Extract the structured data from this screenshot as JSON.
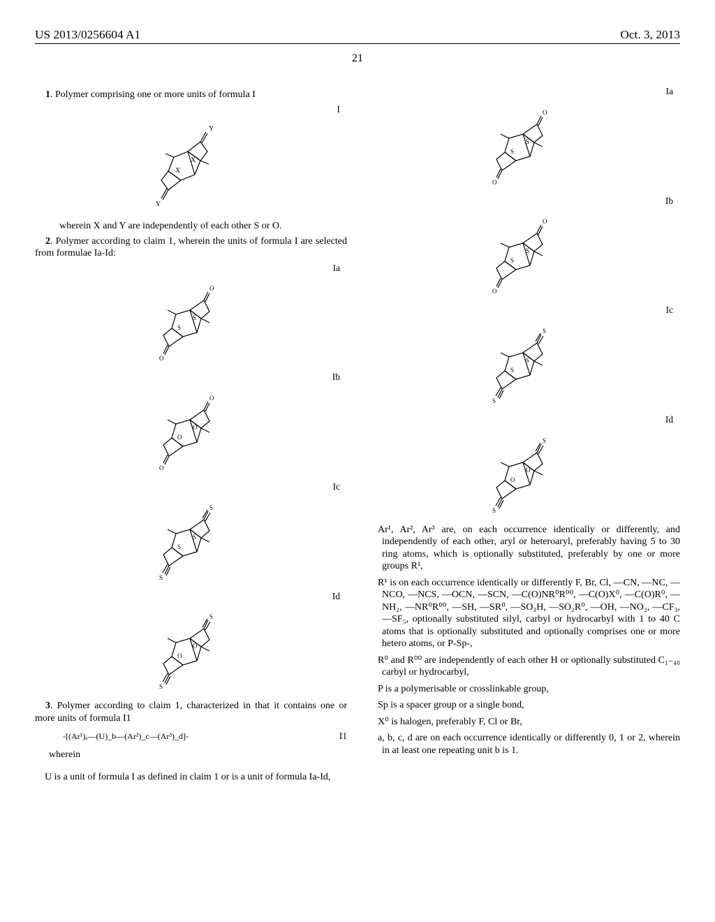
{
  "header": {
    "patent_no": "US 2013/0256604 A1",
    "date": "Oct. 3, 2013"
  },
  "page_number": "21",
  "left": {
    "claim1": "1. Polymer comprising one or more units of formula I",
    "label_I": "I",
    "claim1_wherein": "wherein X and Y are independently of each other S or O.",
    "claim2": "2. Polymer according to claim 1, wherein the units of formula I are selected from formulae Ia-Id:",
    "label_Ia": "Ia",
    "label_Ib": "Ib",
    "label_Ic": "Ic",
    "label_Id": "Id",
    "claim3": "3. Polymer according to claim 1, characterized in that it contains one or more units of formula I1",
    "formula_I1": "-[(Ar¹)ₐ—(U)_b—(Ar²)_c—(Ar³)_d]-",
    "label_I1": "I1",
    "wherein": "wherein",
    "U_def": "U is a unit of formula I as defined in claim 1 or is a unit of formula Ia-Id,"
  },
  "right": {
    "label_Ia": "Ia",
    "label_Ib": "Ib",
    "label_Ic": "Ic",
    "label_Id": "Id",
    "Ar_def": "Ar¹, Ar², Ar³ are, on each occurrence identically or differently, and independently of each other, aryl or heteroaryl, preferably having 5 to 30 ring atoms, which is optionally substituted, preferably by one or more groups R¹,",
    "R1_def": "R¹ is on each occurrence identically or differently F, Br, Cl, —CN, —NC, —NCO, —NCS, —OCN, —SCN, —C(O)NR⁰R⁰⁰, —C(O)X⁰, —C(O)R⁰, —NH₂, —NR⁰R⁰⁰, —SH, —SR⁰, —SO₃H, —SO₂R⁰, —OH, —NO₂, —CF₃, —SF₅, optionally substituted silyl, carbyl or hydrocarbyl with 1 to 40 C atoms that is optionally substituted and optionally comprises one or more hetero atoms, or P-Sp-,",
    "R0_def": "R⁰ and R⁰⁰ are independently of each other H or optionally substituted C₁₋₄₀ carbyl or hydrocarbyl,",
    "P_def": "P is a polymerisable or crosslinkable group,",
    "Sp_def": "Sp is a spacer group or a single bond,",
    "X0_def": "X⁰ is halogen, preferably F, Cl or Br,",
    "abcd_def": "a, b, c, d are on each occurrence identically or differently 0, 1 or 2, wherein in at least one repeating unit b is 1."
  },
  "struct_XY": {
    "top_label": "Y",
    "X_label": "X",
    "bottom_label": "Y"
  },
  "struct_left_Ia": {
    "top": "O",
    "ring": "S",
    "ring2": "S",
    "bottom": "O",
    "top_dbl": false,
    "bottom_dbl": false
  },
  "struct_left_Ib": {
    "top": "O",
    "ring": "O",
    "ring2": "O",
    "bottom": "O",
    "top_dbl": false,
    "bottom_dbl": false
  },
  "struct_left_Ic": {
    "top": "S",
    "ring": "S",
    "ring2": "S",
    "bottom": "S",
    "top_dbl": true,
    "bottom_dbl": true
  },
  "struct_left_Id": {
    "top": "S",
    "ring": "O",
    "ring2": "O",
    "bottom": "S",
    "top_dbl": true,
    "bottom_dbl": true
  },
  "struct_right_Ia": {
    "top": "O",
    "ring": "S",
    "ring2": "S",
    "bottom": "O",
    "top_dbl": false,
    "bottom_dbl": false
  },
  "struct_right_Ib": {
    "top": "O",
    "ring": "S",
    "ring2": "S",
    "bottom": "O",
    "top_dbl": false,
    "bottom_dbl": false
  },
  "struct_right_Ic": {
    "top": "S",
    "ring": "S",
    "ring2": "S",
    "bottom": "S",
    "top_dbl": true,
    "bottom_dbl": true
  },
  "struct_right_Id": {
    "top": "S",
    "ring": "O",
    "ring2": "O",
    "bottom": "S",
    "top_dbl": true,
    "bottom_dbl": true
  },
  "style": {
    "stroke": "#000000",
    "stroke_width": 1.2,
    "font_size": 9
  }
}
